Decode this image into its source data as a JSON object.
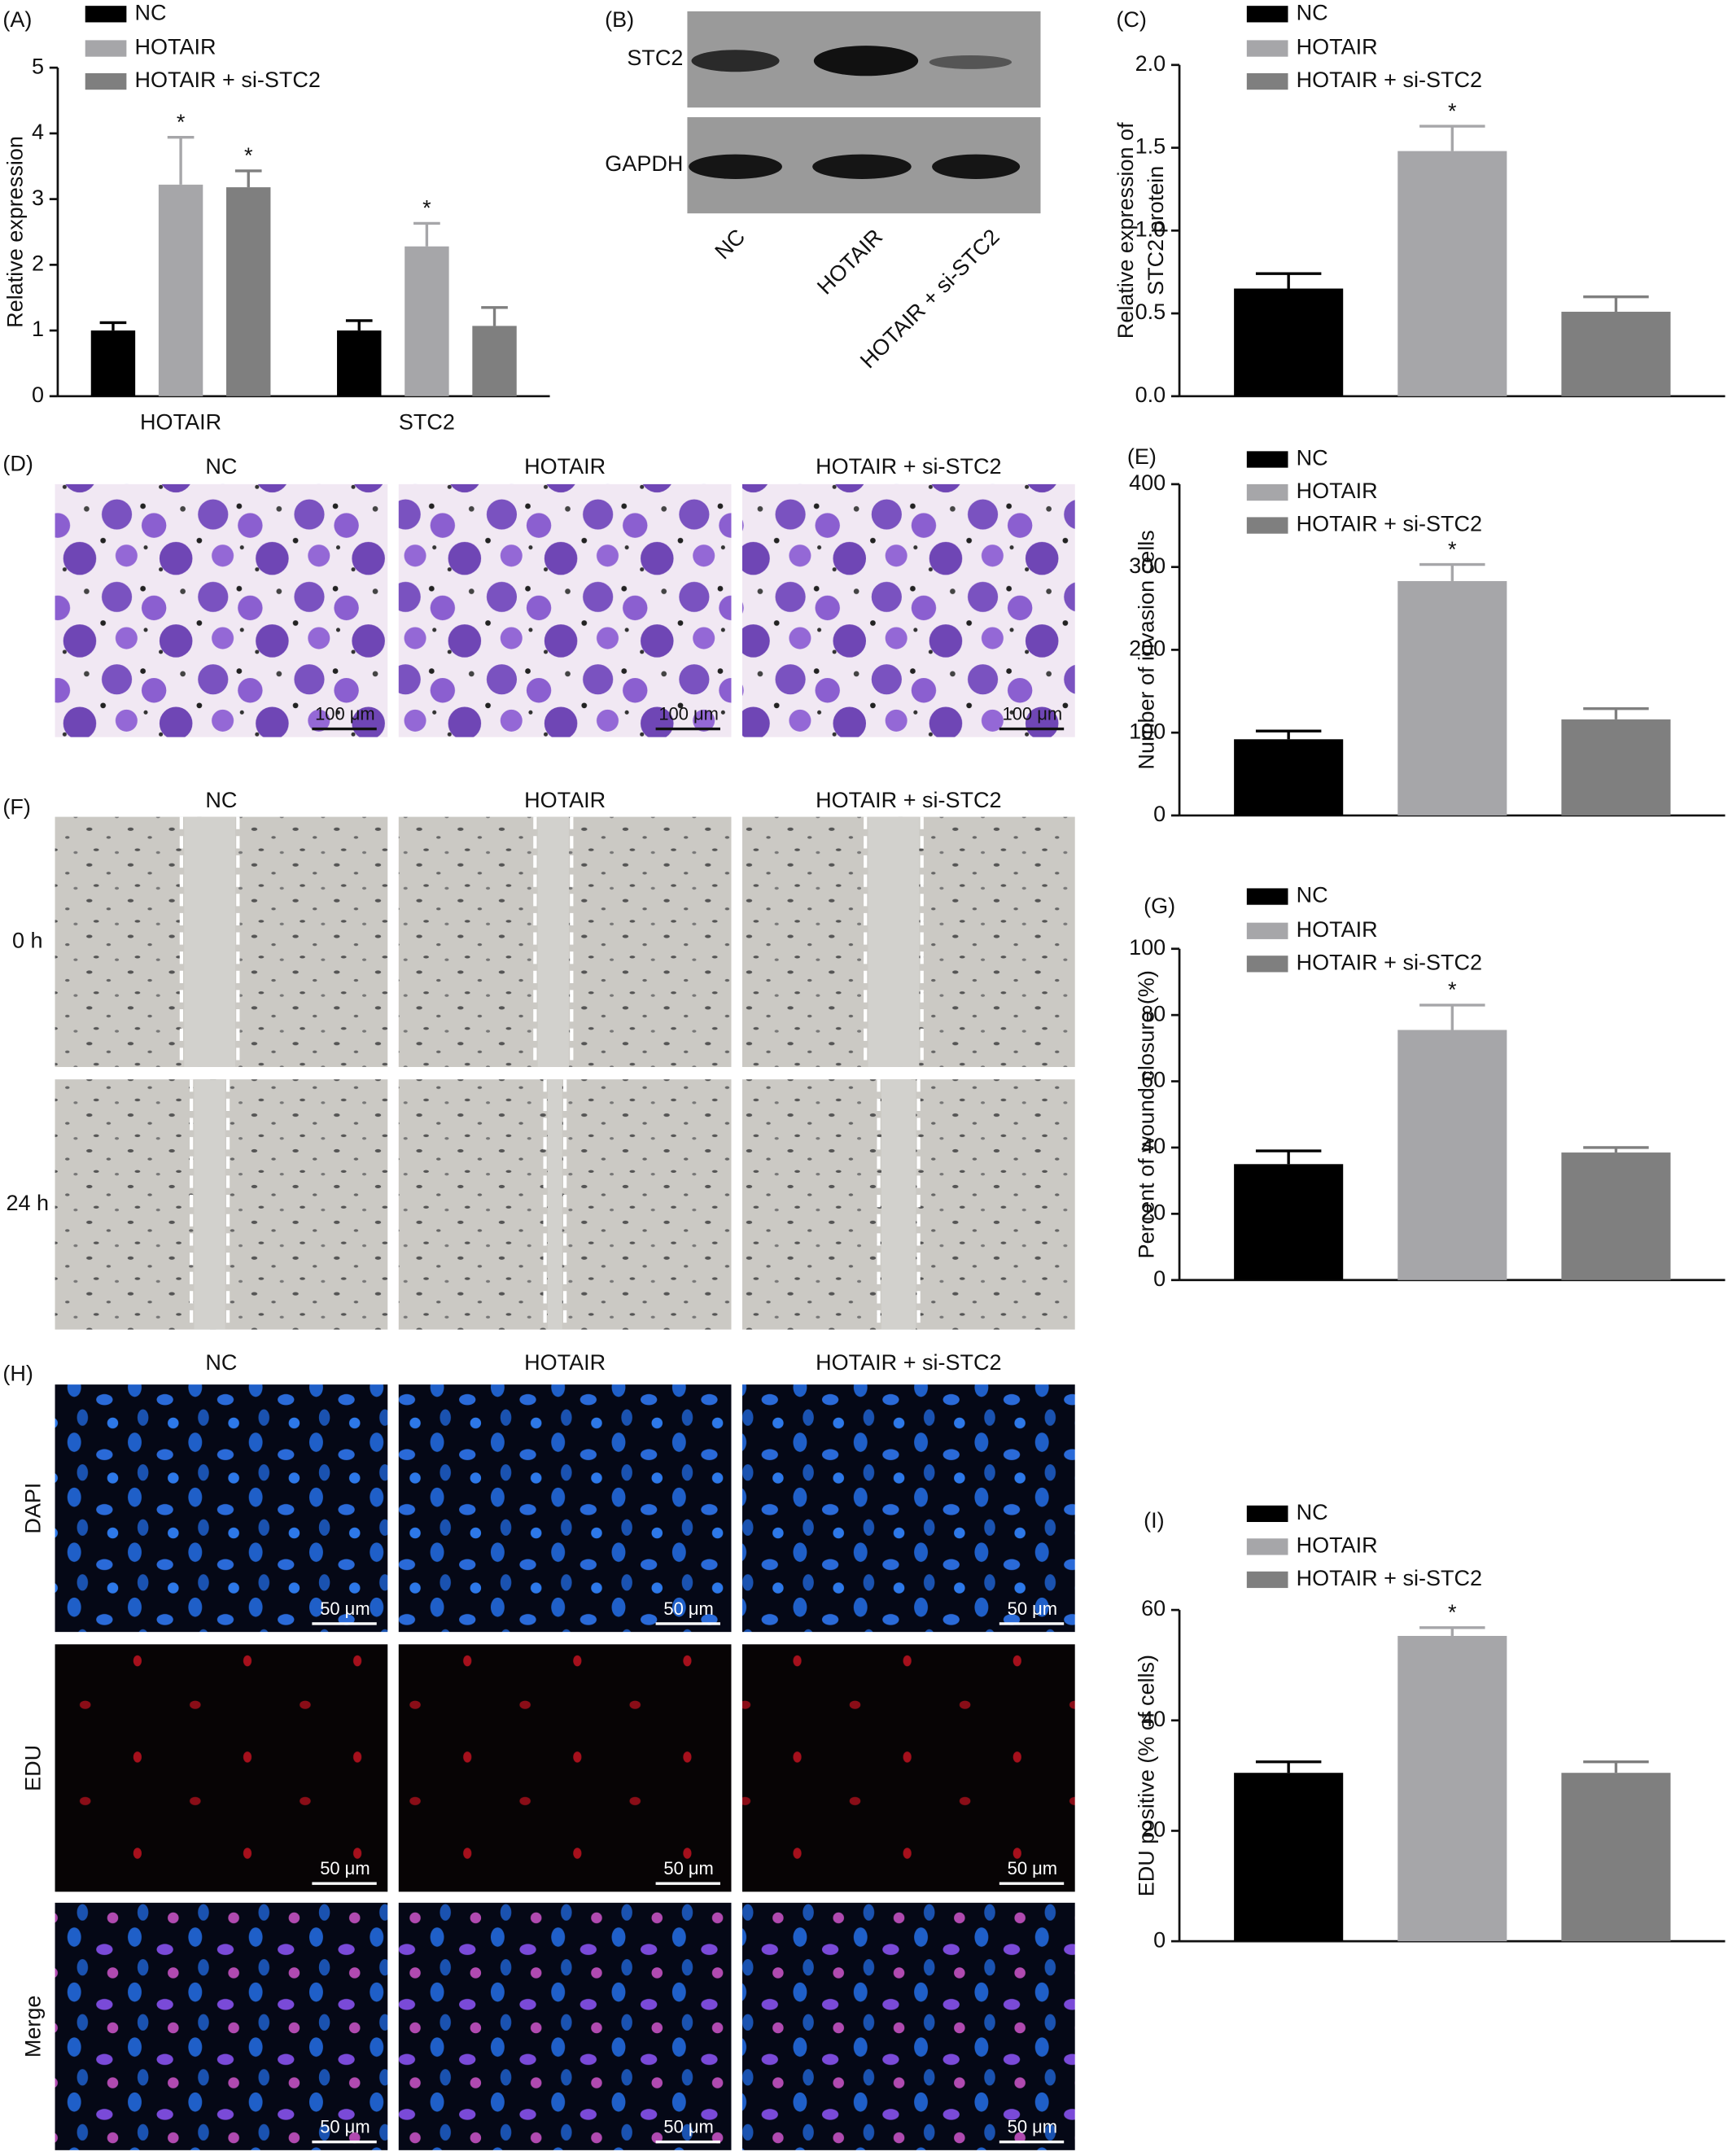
{
  "chart_data": [
    {
      "type": "bar",
      "panel": "(A)",
      "ylabel": [
        "Relative expression"
      ],
      "categories": [
        "HOTAIR",
        "STC2"
      ],
      "series": [
        {
          "name": "NC",
          "color": "#000000",
          "values": [
            1.0,
            1.0
          ],
          "errors": [
            0.12,
            0.15
          ]
        },
        {
          "name": "HOTAIR",
          "color": "#a6a6a9",
          "values": [
            3.22,
            2.28
          ],
          "errors": [
            0.72,
            0.35
          ],
          "annotations": [
            "*",
            "*"
          ]
        },
        {
          "name": "HOTAIR + si-STC2",
          "color": "#7f7f7f",
          "values": [
            3.18,
            1.07
          ],
          "errors": [
            0.25,
            0.28
          ],
          "annotations": [
            "*",
            null
          ]
        }
      ],
      "ylim": [
        0,
        5
      ],
      "yticks": [
        0,
        1,
        2,
        3,
        4,
        5
      ]
    },
    {
      "type": "bar",
      "panel": "(C)",
      "ylabel": [
        "Relative expression of",
        "STC2 protein"
      ],
      "categories": [
        null
      ],
      "series": [
        {
          "name": "NC",
          "color": "#000000",
          "values": [
            0.65
          ],
          "errors": [
            0.09
          ]
        },
        {
          "name": "HOTAIR",
          "color": "#a6a6a9",
          "values": [
            1.48
          ],
          "errors": [
            0.15
          ],
          "annotations": [
            "*"
          ]
        },
        {
          "name": "HOTAIR + si-STC2",
          "color": "#7f7f7f",
          "values": [
            0.51
          ],
          "errors": [
            0.09
          ]
        }
      ],
      "ylim": [
        0,
        2
      ],
      "yticks": [
        {
          "value": 0,
          "label": "0.0"
        },
        {
          "value": 0.5,
          "label": "0.5"
        },
        {
          "value": 1,
          "label": "1.0"
        },
        {
          "value": 1.5,
          "label": "1.5"
        },
        {
          "value": 2,
          "label": "2.0"
        }
      ]
    },
    {
      "type": "bar",
      "panel": "(E)",
      "ylabel": [
        "Number of invasion cells"
      ],
      "categories": [
        null
      ],
      "series": [
        {
          "name": "NC",
          "color": "#000000",
          "values": [
            92
          ],
          "errors": [
            10
          ]
        },
        {
          "name": "HOTAIR",
          "color": "#a6a6a9",
          "values": [
            283
          ],
          "errors": [
            20
          ],
          "annotations": [
            "*"
          ]
        },
        {
          "name": "HOTAIR + si-STC2",
          "color": "#7f7f7f",
          "values": [
            116
          ],
          "errors": [
            13
          ]
        }
      ],
      "ylim": [
        0,
        400
      ],
      "yticks": [
        0,
        100,
        200,
        300,
        400
      ]
    },
    {
      "type": "bar",
      "panel": "(G)",
      "ylabel": [
        "Percent of wound closure (%)"
      ],
      "categories": [
        null
      ],
      "series": [
        {
          "name": "NC",
          "color": "#000000",
          "values": [
            35
          ],
          "errors": [
            4
          ]
        },
        {
          "name": "HOTAIR",
          "color": "#a6a6a9",
          "values": [
            75.5
          ],
          "errors": [
            7.5
          ],
          "annotations": [
            "*"
          ]
        },
        {
          "name": "HOTAIR + si-STC2",
          "color": "#7f7f7f",
          "values": [
            38.5
          ],
          "errors": [
            1.5
          ]
        }
      ],
      "ylim": [
        0,
        100
      ],
      "yticks": [
        0,
        20,
        40,
        60,
        80,
        100
      ]
    },
    {
      "type": "bar",
      "panel": "(I)",
      "ylabel": [
        "EDU positive (% of cells)"
      ],
      "categories": [
        null
      ],
      "series": [
        {
          "name": "NC",
          "color": "#000000",
          "values": [
            30.5
          ],
          "errors": [
            2
          ]
        },
        {
          "name": "HOTAIR",
          "color": "#a6a6a9",
          "values": [
            55.3
          ],
          "errors": [
            1.5
          ],
          "annotations": [
            "*"
          ]
        },
        {
          "name": "HOTAIR + si-STC2",
          "color": "#7f7f7f",
          "values": [
            30.5
          ],
          "errors": [
            2
          ]
        }
      ],
      "ylim": [
        0,
        60
      ],
      "yticks": [
        0,
        20,
        40,
        60
      ]
    }
  ],
  "panels": {
    "B": {
      "label": "(B)",
      "rows": [
        "STC2",
        "GAPDH"
      ],
      "lanes": [
        "NC",
        "HOTAIR",
        "HOTAIR + si-STC2"
      ]
    },
    "D": {
      "label": "(D)",
      "columns": [
        "NC",
        "HOTAIR",
        "HOTAIR + si-STC2"
      ],
      "scale": "100 μm"
    },
    "F": {
      "label": "(F)",
      "columns": [
        "NC",
        "HOTAIR",
        "HOTAIR + si-STC2"
      ],
      "rows": [
        "0 h",
        "24 h"
      ]
    },
    "H": {
      "label": "(H)",
      "columns": [
        "NC",
        "HOTAIR",
        "HOTAIR + si-STC2"
      ],
      "rows": [
        "DAPI",
        "EDU",
        "Merge"
      ],
      "scale": "50 μm"
    }
  }
}
